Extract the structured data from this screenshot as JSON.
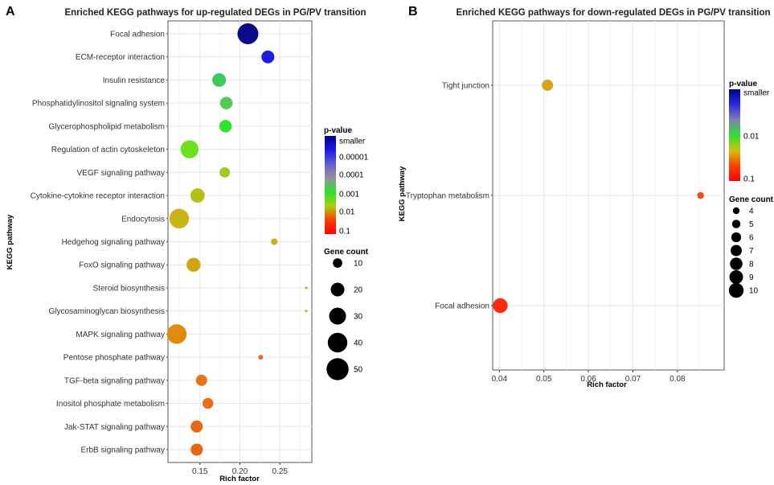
{
  "chart_data": [
    {
      "panel": "A",
      "type": "scatter",
      "title": "Enriched KEGG pathways for up-regulated DEGs in PG/PV transition",
      "xlabel": "Rich factor",
      "ylabel": "KEGG pathway",
      "xlim": [
        0.11,
        0.29
      ],
      "xticks": [
        0.15,
        0.2,
        0.25
      ],
      "xtick_labels": [
        "0.15",
        "0.20",
        "0.25"
      ],
      "categories": [
        "Focal adhesion",
        "ECM-receptor interaction",
        "Insulin resistance",
        "Phosphatidylinositol signaling system",
        "Glycerophospholipid metabolism",
        "Regulation of actin cytoskeleton",
        "VEGF signaling pathway",
        "Cytokine-cytokine receptor interaction",
        "Endocytosis",
        "Hedgehog signaling pathway",
        "FoxO signaling pathway",
        "Steroid biosynthesis",
        "Glycosaminoglycan biosynthesis",
        "MAPK signaling pathway",
        "Pentose phosphate pathway",
        "TGF-beta signaling pathway",
        "Inositol phosphate metabolism",
        "Jak-STAT signaling pathway",
        "ErbB signaling pathway"
      ],
      "points": [
        {
          "pathway": "Focal adhesion",
          "rich_factor": 0.21,
          "gene_count": 45,
          "p_value": 2e-06,
          "color": "#0a0a8c"
        },
        {
          "pathway": "ECM-receptor interaction",
          "rich_factor": 0.235,
          "gene_count": 18,
          "p_value": 5e-05,
          "color": "#1e1ee0"
        },
        {
          "pathway": "Insulin resistance",
          "rich_factor": 0.174,
          "gene_count": 20,
          "p_value": 0.004,
          "color": "#3ec95a"
        },
        {
          "pathway": "Phosphatidylinositol signaling system",
          "rich_factor": 0.183,
          "gene_count": 17,
          "p_value": 0.005,
          "color": "#50cc50"
        },
        {
          "pathway": "Glycerophospholipid metabolism",
          "rich_factor": 0.182,
          "gene_count": 17,
          "p_value": 0.007,
          "color": "#2ee52e"
        },
        {
          "pathway": "Regulation of actin cytoskeleton",
          "rich_factor": 0.137,
          "gene_count": 34,
          "p_value": 0.012,
          "color": "#6ee020"
        },
        {
          "pathway": "VEGF signaling pathway",
          "rich_factor": 0.181,
          "gene_count": 12,
          "p_value": 0.018,
          "color": "#a4c81e"
        },
        {
          "pathway": "Cytokine-cytokine receptor interaction",
          "rich_factor": 0.147,
          "gene_count": 22,
          "p_value": 0.022,
          "color": "#b4c018"
        },
        {
          "pathway": "Endocytosis",
          "rich_factor": 0.124,
          "gene_count": 40,
          "p_value": 0.03,
          "color": "#c8b414"
        },
        {
          "pathway": "Hedgehog signaling pathway",
          "rich_factor": 0.243,
          "gene_count": 5,
          "p_value": 0.035,
          "color": "#d0a818"
        },
        {
          "pathway": "FoxO signaling pathway",
          "rich_factor": 0.142,
          "gene_count": 21,
          "p_value": 0.04,
          "color": "#d0a414"
        },
        {
          "pathway": "Steroid biosynthesis",
          "rich_factor": 0.283,
          "gene_count": 1,
          "p_value": 0.045,
          "color": "#cfa31a"
        },
        {
          "pathway": "Glycosaminoglycan biosynthesis",
          "rich_factor": 0.283,
          "gene_count": 1,
          "p_value": 0.045,
          "color": "#cfa31a"
        },
        {
          "pathway": "MAPK signaling pathway",
          "rich_factor": 0.121,
          "gene_count": 40,
          "p_value": 0.055,
          "color": "#e08a10"
        },
        {
          "pathway": "Pentose phosphate pathway",
          "rich_factor": 0.226,
          "gene_count": 3,
          "p_value": 0.07,
          "color": "#e66a1a"
        },
        {
          "pathway": "TGF-beta signaling pathway",
          "rich_factor": 0.152,
          "gene_count": 14,
          "p_value": 0.072,
          "color": "#e8721a"
        },
        {
          "pathway": "Inositol phosphate metabolism",
          "rich_factor": 0.16,
          "gene_count": 13,
          "p_value": 0.074,
          "color": "#e66e1c"
        },
        {
          "pathway": "Jak-STAT signaling pathway",
          "rich_factor": 0.146,
          "gene_count": 16,
          "p_value": 0.076,
          "color": "#e8681a"
        },
        {
          "pathway": "ErbB signaling pathway",
          "rich_factor": 0.146,
          "gene_count": 16,
          "p_value": 0.078,
          "color": "#e8661a"
        }
      ],
      "legend_pvalue": {
        "title": "p-value",
        "labels": [
          "smaller",
          "0.00001",
          "0.0001",
          "0.001",
          "0.01",
          "0.1"
        ],
        "gradient": [
          "#00008b",
          "#1a1ae6",
          "#6060d0",
          "#9a8fa0",
          "#2ee02e",
          "#a8d010",
          "#ff4000",
          "#ff0000"
        ]
      },
      "legend_gene_count": {
        "title": "Gene count",
        "values": [
          10,
          20,
          30,
          40,
          50
        ],
        "labels": [
          "10",
          "20",
          "30",
          "40",
          "50"
        ]
      }
    },
    {
      "panel": "B",
      "type": "scatter",
      "title": "Enriched KEGG pathways for down-regulated DEGs in PG/PV transition",
      "xlabel": "Rich factor",
      "ylabel": "KEGG pathway",
      "xlim": [
        0.0385,
        0.0905
      ],
      "xticks": [
        0.04,
        0.05,
        0.06,
        0.07,
        0.08
      ],
      "xtick_labels": [
        "0.04",
        "0.05",
        "0.06",
        "0.07",
        "0.08"
      ],
      "categories": [
        "Tight junction",
        "Tryptophan metabolism",
        "Focal adhesion"
      ],
      "points": [
        {
          "pathway": "Tight junction",
          "rich_factor": 0.0508,
          "gene_count": 7,
          "p_value": 0.025,
          "color": "#d4a418"
        },
        {
          "pathway": "Tryptophan metabolism",
          "rich_factor": 0.0852,
          "gene_count": 4,
          "p_value": 0.085,
          "color": "#ee4a1a"
        },
        {
          "pathway": "Focal adhesion",
          "rich_factor": 0.0402,
          "gene_count": 10,
          "p_value": 0.1,
          "color": "#ff2a10"
        }
      ],
      "legend_pvalue": {
        "title": "p-value",
        "labels": [
          "smaller",
          "0.01",
          "0.1"
        ],
        "gradient": [
          "#00008b",
          "#2a2ae0",
          "#8080b0",
          "#2ee02e",
          "#d0c010",
          "#ff4000",
          "#ff0000"
        ]
      },
      "legend_gene_count": {
        "title": "Gene count",
        "values": [
          4,
          5,
          6,
          7,
          8,
          9,
          10
        ],
        "labels": [
          "4",
          "5",
          "6",
          "7",
          "8",
          "9",
          "10"
        ]
      }
    }
  ]
}
